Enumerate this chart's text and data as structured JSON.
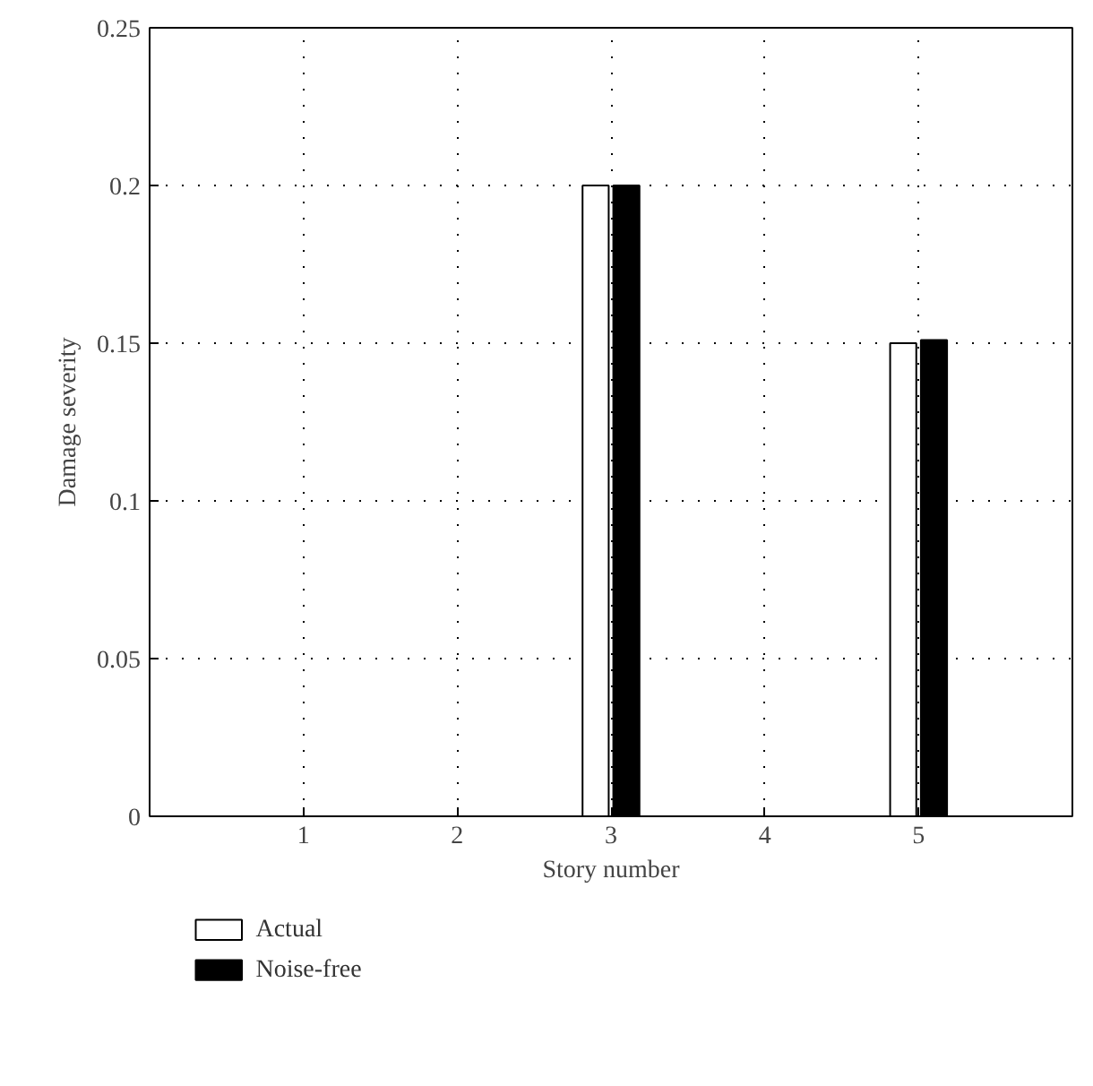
{
  "chart_data": {
    "type": "bar",
    "xlabel": "Story number",
    "ylabel": "Damage severity",
    "x": [
      1,
      2,
      3,
      4,
      5
    ],
    "series": [
      {
        "name": "Actual",
        "color": "#ffffff",
        "values": [
          0,
          0,
          0.2,
          0,
          0.15
        ]
      },
      {
        "name": "Noise-free",
        "color": "#000000",
        "values": [
          0,
          0,
          0.2,
          0,
          0.151
        ]
      }
    ],
    "xlim": [
      0,
      6
    ],
    "xticks": [
      1,
      2,
      3,
      4,
      5
    ],
    "ylim": [
      0,
      0.25
    ],
    "yticks": [
      0,
      0.05,
      0.1,
      0.15,
      0.2,
      0.25
    ],
    "grid": true,
    "legend": "bottom left"
  }
}
